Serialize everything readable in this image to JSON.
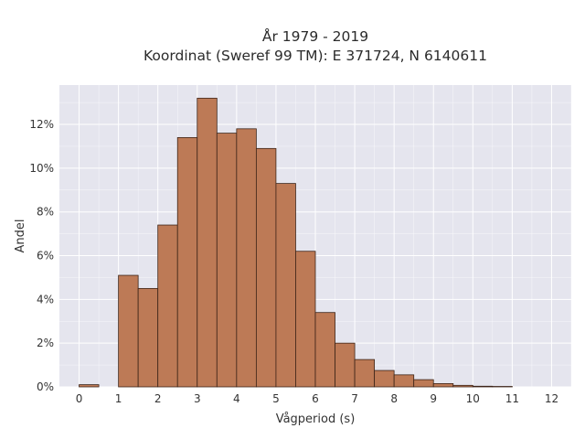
{
  "chart_data": {
    "type": "bar",
    "title_lines": [
      "År 1979 - 2019",
      "Koordinat (Sweref 99 TM): E 371724, N 6140611"
    ],
    "xlabel": "Vågperiod (s)",
    "ylabel": "Andel",
    "xlim": [
      -0.5,
      12.5
    ],
    "ylim": [
      0,
      13.8
    ],
    "bin_width": 0.5,
    "x_ticks": [
      0,
      1,
      2,
      3,
      4,
      5,
      6,
      7,
      8,
      9,
      10,
      11,
      12
    ],
    "x_tick_labels": [
      "0",
      "1",
      "2",
      "3",
      "4",
      "5",
      "6",
      "7",
      "8",
      "9",
      "10",
      "11",
      "12"
    ],
    "y_ticks": [
      0,
      2,
      4,
      6,
      8,
      10,
      12
    ],
    "y_tick_labels": [
      "0%",
      "2%",
      "4%",
      "6%",
      "8%",
      "10%",
      "12%"
    ],
    "bins": [
      {
        "start": 0.0,
        "end": 0.5,
        "value": 0.1
      },
      {
        "start": 1.0,
        "end": 1.5,
        "value": 5.1
      },
      {
        "start": 1.5,
        "end": 2.0,
        "value": 4.5
      },
      {
        "start": 2.0,
        "end": 2.5,
        "value": 7.4
      },
      {
        "start": 2.5,
        "end": 3.0,
        "value": 11.4
      },
      {
        "start": 3.0,
        "end": 3.5,
        "value": 13.2
      },
      {
        "start": 3.5,
        "end": 4.0,
        "value": 11.6
      },
      {
        "start": 4.0,
        "end": 4.5,
        "value": 11.8
      },
      {
        "start": 4.5,
        "end": 5.0,
        "value": 10.9
      },
      {
        "start": 5.0,
        "end": 5.5,
        "value": 9.3
      },
      {
        "start": 5.5,
        "end": 6.0,
        "value": 6.2
      },
      {
        "start": 6.0,
        "end": 6.5,
        "value": 3.4
      },
      {
        "start": 6.5,
        "end": 7.0,
        "value": 2.0
      },
      {
        "start": 7.0,
        "end": 7.5,
        "value": 1.25
      },
      {
        "start": 7.5,
        "end": 8.0,
        "value": 0.75
      },
      {
        "start": 8.0,
        "end": 8.5,
        "value": 0.55
      },
      {
        "start": 8.5,
        "end": 9.0,
        "value": 0.33
      },
      {
        "start": 9.0,
        "end": 9.5,
        "value": 0.15
      },
      {
        "start": 9.5,
        "end": 10.0,
        "value": 0.07
      },
      {
        "start": 10.0,
        "end": 10.5,
        "value": 0.03
      },
      {
        "start": 10.5,
        "end": 11.0,
        "value": 0.02
      }
    ],
    "grid": true,
    "colors": {
      "bar_fill": "#bd7a56",
      "bar_stroke": "#3d2418",
      "plot_background": "#e5e5ee",
      "grid": "#ffffff"
    }
  }
}
